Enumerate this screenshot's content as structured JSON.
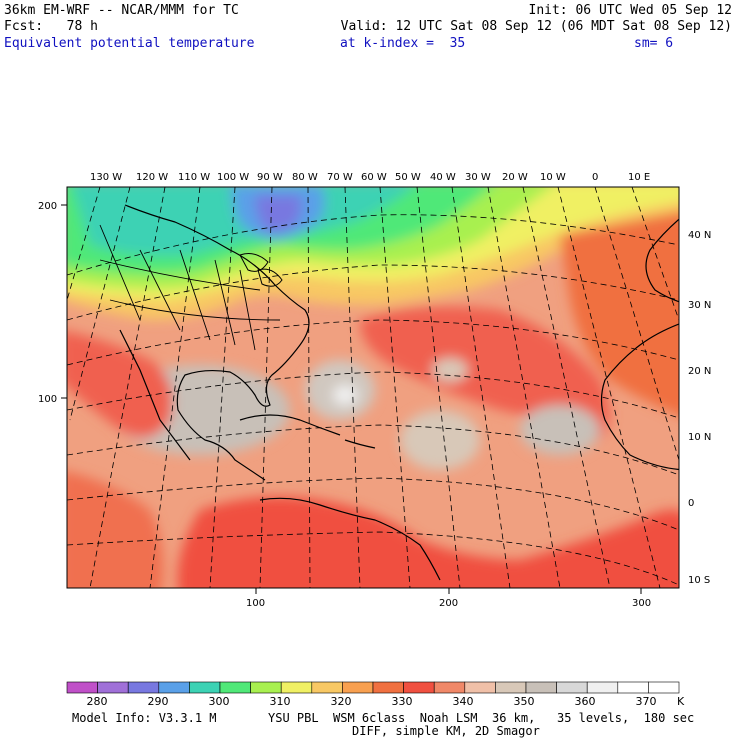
{
  "header": {
    "model": "36km EM-WRF -- NCAR/MMM for TC",
    "init": "Init: 06 UTC Wed 05 Sep 12",
    "fcst": "Fcst:   78 h",
    "valid": "Valid: 12 UTC Sat 08 Sep 12 (06 MDT Sat 08 Sep 12)",
    "field": "Equivalent potential temperature",
    "level": "at k-index =  35",
    "smooth": "sm= 6"
  },
  "map": {
    "lon_labels": [
      "130 W",
      "120 W",
      "110 W",
      "100 W",
      "90 W",
      "80 W",
      "70 W",
      "60 W",
      "50 W",
      "40 W",
      "30 W",
      "20 W",
      "10 W",
      "0",
      "10 E"
    ],
    "lat_labels": [
      "40 N",
      "30 N",
      "20 N",
      "10 N",
      "0",
      "10 S"
    ],
    "grid_x_labels": [
      "100",
      "200",
      "300"
    ],
    "grid_y_labels": [
      "200",
      "100"
    ]
  },
  "colorbar": {
    "labels": [
      "280",
      "290",
      "300",
      "310",
      "320",
      "330",
      "340",
      "350",
      "360",
      "370"
    ],
    "unit": "K",
    "colors": [
      "#c050c8",
      "#a070d8",
      "#7878e0",
      "#5aa0e8",
      "#3cd2b4",
      "#50e878",
      "#a8f050",
      "#f0f064",
      "#f8c864",
      "#f8a050",
      "#f07040",
      "#f05040",
      "#f08868",
      "#f0c0a8",
      "#d8c8b8",
      "#c8c0b8",
      "#d8d8d8",
      "#f0f0f0",
      "#ffffff",
      "#ffffff"
    ]
  },
  "footer": {
    "model_info": "Model Info: V3.3.1 M",
    "physics": "YSU PBL  WSM 6class  Noah LSM  36 km,   35 levels,  180 sec",
    "diff": "DIFF, simple KM, 2D Smagor"
  }
}
